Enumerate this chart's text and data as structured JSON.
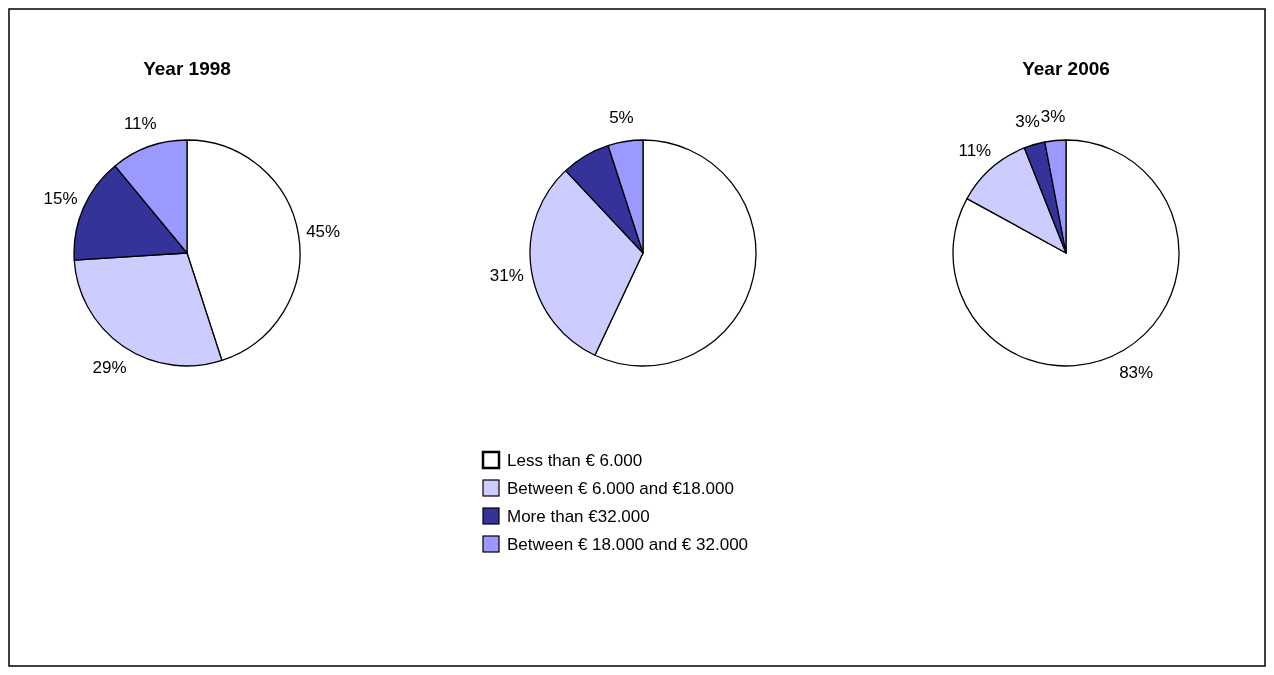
{
  "chart_data": [
    {
      "type": "pie",
      "title": "Year 1998",
      "categories": [
        null,
        null,
        null,
        null
      ],
      "values": [
        45,
        29,
        15,
        11
      ],
      "colors": [
        "#ffffff",
        "#ccccff",
        "#333399",
        "#9999ff"
      ],
      "value_labels": [
        "45%",
        "29%",
        "15%",
        "11%"
      ]
    },
    {
      "type": "pie",
      "categories": [
        "Less than € 6.000",
        "Between € 6.000 and €18.000",
        "More than €32.000",
        "Between € 18.000 and € 32.000"
      ],
      "values": [
        57,
        31,
        7,
        5
      ],
      "colors": [
        "#ffffff",
        "#ccccff",
        "#333399",
        "#9999ff"
      ],
      "value_labels": [
        null,
        "31%",
        null,
        "5%"
      ],
      "legend": "bottom"
    },
    {
      "type": "pie",
      "title": "Year 2006",
      "categories": [
        null,
        null,
        null,
        null
      ],
      "values": [
        83,
        11,
        3,
        3
      ],
      "colors": [
        "#ffffff",
        "#ccccff",
        "#333399",
        "#9999ff"
      ],
      "value_labels": [
        "83%",
        "11%",
        "3%",
        "3%"
      ]
    }
  ]
}
